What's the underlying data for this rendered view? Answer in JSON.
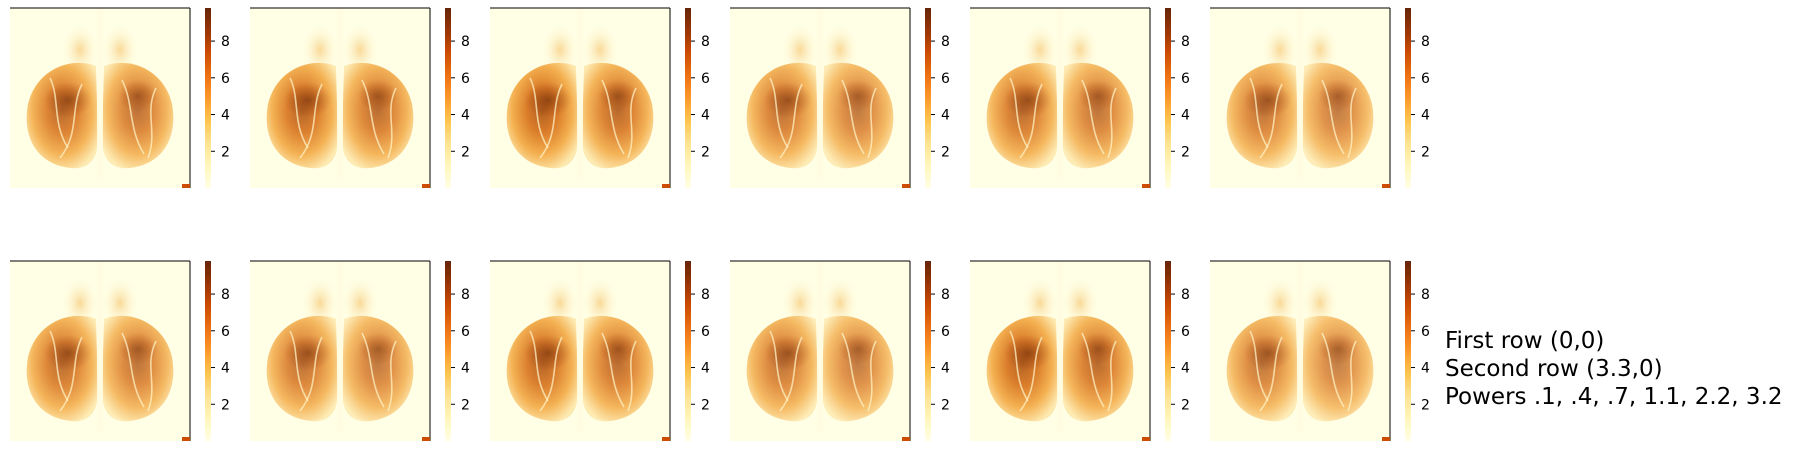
{
  "chart_data": {
    "type": "heatmap",
    "layout": {
      "rows": 2,
      "columns": 6
    },
    "panels": [
      {
        "row": 1,
        "col": 1,
        "intensity": 0.97
      },
      {
        "row": 1,
        "col": 2,
        "intensity": 1.0
      },
      {
        "row": 1,
        "col": 3,
        "intensity": 1.03
      },
      {
        "row": 1,
        "col": 4,
        "intensity": 0.92
      },
      {
        "row": 1,
        "col": 5,
        "intensity": 0.95
      },
      {
        "row": 1,
        "col": 6,
        "intensity": 0.9
      },
      {
        "row": 2,
        "col": 1,
        "intensity": 0.95
      },
      {
        "row": 2,
        "col": 2,
        "intensity": 0.92
      },
      {
        "row": 2,
        "col": 3,
        "intensity": 1.0
      },
      {
        "row": 2,
        "col": 4,
        "intensity": 0.9
      },
      {
        "row": 2,
        "col": 5,
        "intensity": 1.02
      },
      {
        "row": 2,
        "col": 6,
        "intensity": 0.88
      }
    ],
    "colorbar": {
      "colormap": "YlOrBr",
      "range": [
        0,
        9.8
      ],
      "ticks": [
        2,
        4,
        6,
        8
      ],
      "tick_labels": [
        "2",
        "4",
        "6",
        "8"
      ]
    }
  },
  "caption": {
    "line1": "First row (0,0)",
    "line2": "Second row (3.3,0)",
    "line3": "Powers .1, .4, .7, 1.1, 2.2, 3.2"
  },
  "colors": {
    "background": "#ffffff",
    "colormap_stops": [
      "#ffffe5",
      "#fff7bc",
      "#fee391",
      "#fec44f",
      "#fe9929",
      "#ec7014",
      "#cc4c02",
      "#993404",
      "#662506"
    ]
  }
}
